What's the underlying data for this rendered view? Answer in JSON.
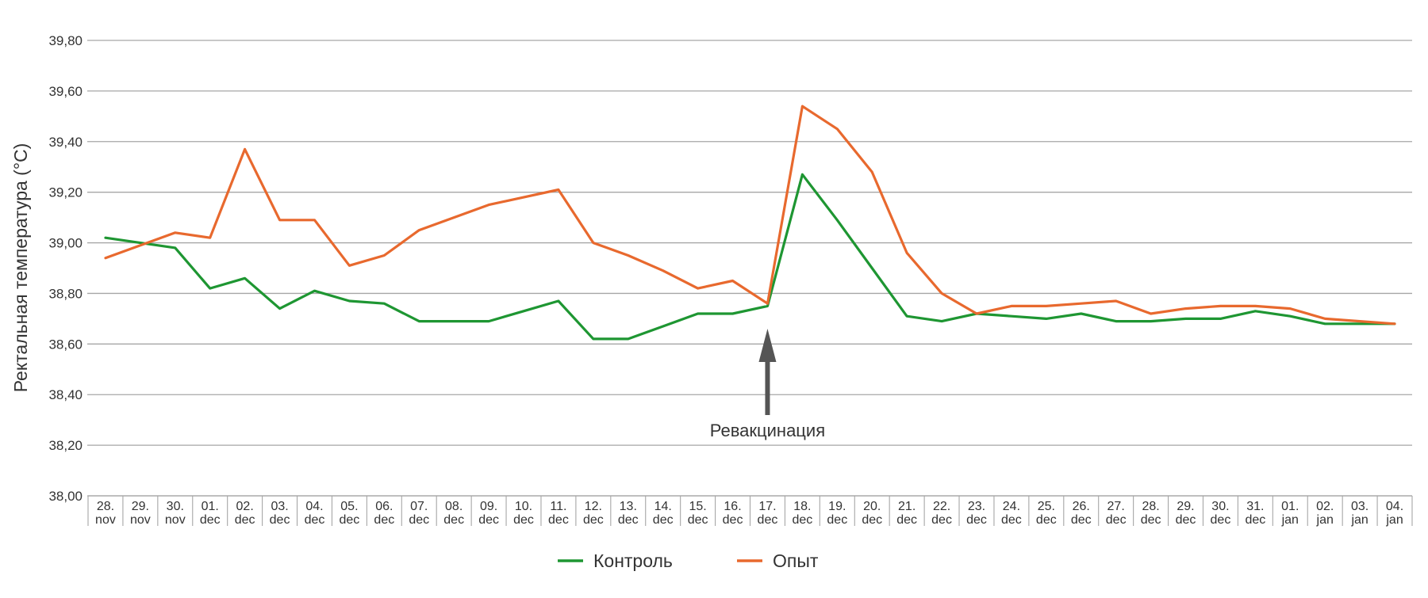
{
  "chart_data": {
    "type": "line",
    "ylabel": "Ректальная температура (°C)",
    "ylim": [
      38.0,
      39.8
    ],
    "yticks": [
      "38,00",
      "38,20",
      "38,40",
      "38,60",
      "38,80",
      "39,00",
      "39,20",
      "39,40",
      "39,60",
      "39,80"
    ],
    "grid": true,
    "legend_position": "bottom-center",
    "categories": [
      "28. nov",
      "29. nov",
      "30. nov",
      "01. dec",
      "02. dec",
      "03. dec",
      "04. dec",
      "05. dec",
      "06. dec",
      "07. dec",
      "08. dec",
      "09. dec",
      "10. dec",
      "11. dec",
      "12. dec",
      "13. dec",
      "14. dec",
      "15. dec",
      "16. dec",
      "17. dec",
      "18. dec",
      "19. dec",
      "20. dec",
      "21. dec",
      "22. dec",
      "23. dec",
      "24. dec",
      "25. dec",
      "26. dec",
      "27. dec",
      "28. dec",
      "29. dec",
      "30. dec",
      "31. dec",
      "01. jan",
      "02. jan",
      "03. jan",
      "04. jan"
    ],
    "series": [
      {
        "name": "Контроль",
        "color": "#1e9632",
        "values": [
          39.02,
          39.0,
          38.98,
          38.82,
          38.86,
          38.74,
          38.81,
          38.77,
          38.76,
          38.69,
          38.69,
          38.69,
          38.73,
          38.77,
          38.62,
          38.62,
          38.67,
          38.72,
          38.72,
          38.75,
          39.27,
          39.09,
          38.9,
          38.71,
          38.69,
          38.72,
          38.71,
          38.7,
          38.72,
          38.69,
          38.69,
          38.7,
          38.7,
          38.73,
          38.71,
          38.68,
          38.68,
          38.68
        ]
      },
      {
        "name": "Опыт",
        "color": "#e8692e",
        "values": [
          38.94,
          38.99,
          39.04,
          39.02,
          39.37,
          39.09,
          39.09,
          38.91,
          38.95,
          39.05,
          39.1,
          39.15,
          39.18,
          39.21,
          39.0,
          38.95,
          38.89,
          38.82,
          38.85,
          38.76,
          39.54,
          39.45,
          39.28,
          38.96,
          38.8,
          38.72,
          38.75,
          38.75,
          38.76,
          38.77,
          38.72,
          38.74,
          38.75,
          38.75,
          38.74,
          38.7,
          38.69,
          38.68
        ]
      }
    ],
    "annotation": {
      "text": "Ревакцинация",
      "category": "17. dec"
    }
  }
}
